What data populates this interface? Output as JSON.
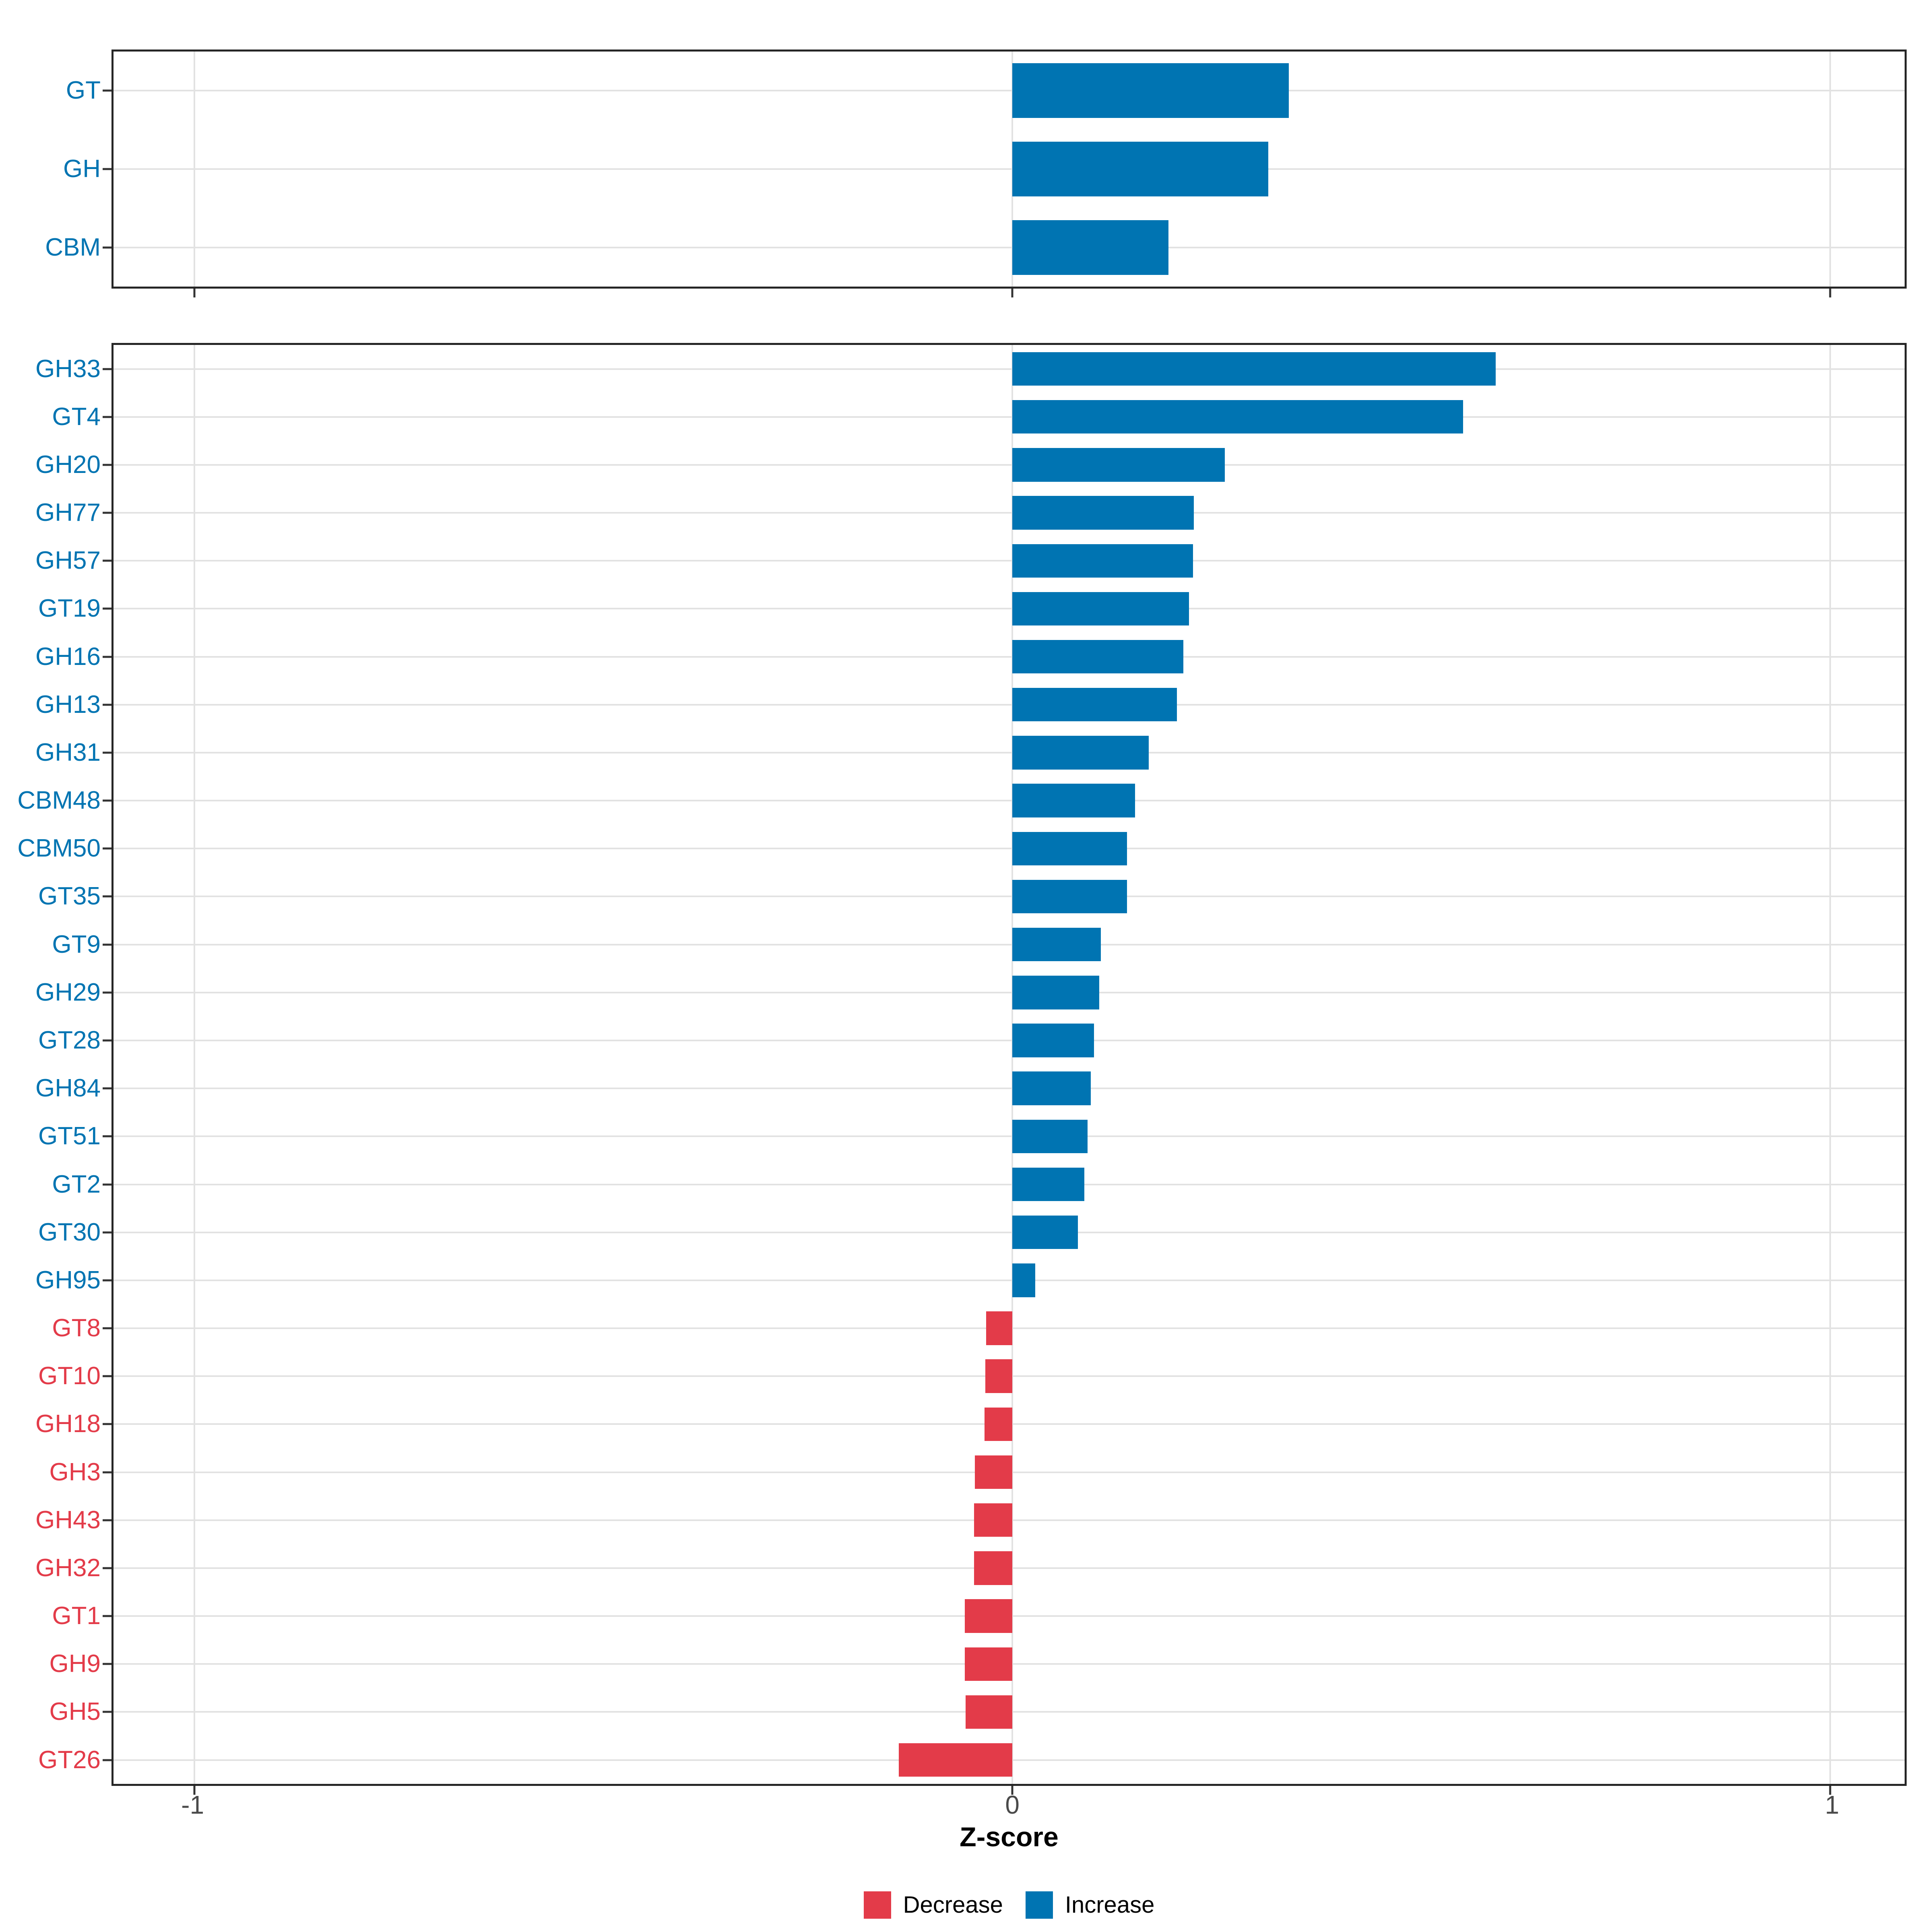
{
  "chart_data": {
    "type": "bar",
    "orientation": "horizontal",
    "title": "",
    "xlabel": "Z-score",
    "ylabel": "",
    "xlim": [
      -1.099,
      1.091
    ],
    "x_ticks": [
      {
        "value": -1,
        "label": "-1"
      },
      {
        "value": 0,
        "label": "0"
      },
      {
        "value": 1,
        "label": "1"
      }
    ],
    "grid": "major-only",
    "legend_position": "bottom",
    "colors": {
      "increase": "#0074B2",
      "decrease": "#E33B49",
      "axis_text": "#4A4A4A",
      "panel_border": "#262626",
      "gridline": "#E2E2E2"
    },
    "legend": [
      {
        "key": "decrease",
        "label": "Decrease"
      },
      {
        "key": "increase",
        "label": "Increase"
      }
    ],
    "panels": [
      {
        "name": "cazyme-class-summary",
        "items": [
          {
            "label": "GT",
            "value": 0.338,
            "direction": "increase"
          },
          {
            "label": "GH",
            "value": 0.313,
            "direction": "increase"
          },
          {
            "label": "CBM",
            "value": 0.191,
            "direction": "increase"
          }
        ]
      },
      {
        "name": "cazyme-families",
        "items": [
          {
            "label": "GH33",
            "value": 0.591,
            "direction": "increase"
          },
          {
            "label": "GT4",
            "value": 0.551,
            "direction": "increase"
          },
          {
            "label": "GH20",
            "value": 0.26,
            "direction": "increase"
          },
          {
            "label": "GH77",
            "value": 0.222,
            "direction": "increase"
          },
          {
            "label": "GH57",
            "value": 0.221,
            "direction": "increase"
          },
          {
            "label": "GT19",
            "value": 0.216,
            "direction": "increase"
          },
          {
            "label": "GH16",
            "value": 0.209,
            "direction": "increase"
          },
          {
            "label": "GH13",
            "value": 0.201,
            "direction": "increase"
          },
          {
            "label": "GH31",
            "value": 0.167,
            "direction": "increase"
          },
          {
            "label": "CBM48",
            "value": 0.15,
            "direction": "increase"
          },
          {
            "label": "CBM50",
            "value": 0.14,
            "direction": "increase"
          },
          {
            "label": "GT35",
            "value": 0.14,
            "direction": "increase"
          },
          {
            "label": "GT9",
            "value": 0.108,
            "direction": "increase"
          },
          {
            "label": "GH29",
            "value": 0.106,
            "direction": "increase"
          },
          {
            "label": "GT28",
            "value": 0.1,
            "direction": "increase"
          },
          {
            "label": "GH84",
            "value": 0.096,
            "direction": "increase"
          },
          {
            "label": "GT51",
            "value": 0.092,
            "direction": "increase"
          },
          {
            "label": "GT2",
            "value": 0.088,
            "direction": "increase"
          },
          {
            "label": "GT30",
            "value": 0.08,
            "direction": "increase"
          },
          {
            "label": "GH95",
            "value": 0.028,
            "direction": "increase"
          },
          {
            "label": "GT8",
            "value": -0.032,
            "direction": "decrease"
          },
          {
            "label": "GT10",
            "value": -0.033,
            "direction": "decrease"
          },
          {
            "label": "GH18",
            "value": -0.034,
            "direction": "decrease"
          },
          {
            "label": "GH3",
            "value": -0.046,
            "direction": "decrease"
          },
          {
            "label": "GH43",
            "value": -0.047,
            "direction": "decrease"
          },
          {
            "label": "GH32",
            "value": -0.047,
            "direction": "decrease"
          },
          {
            "label": "GT1",
            "value": -0.058,
            "direction": "decrease"
          },
          {
            "label": "GH9",
            "value": -0.058,
            "direction": "decrease"
          },
          {
            "label": "GH5",
            "value": -0.057,
            "direction": "decrease"
          },
          {
            "label": "GT26",
            "value": -0.139,
            "direction": "decrease"
          }
        ]
      }
    ]
  }
}
